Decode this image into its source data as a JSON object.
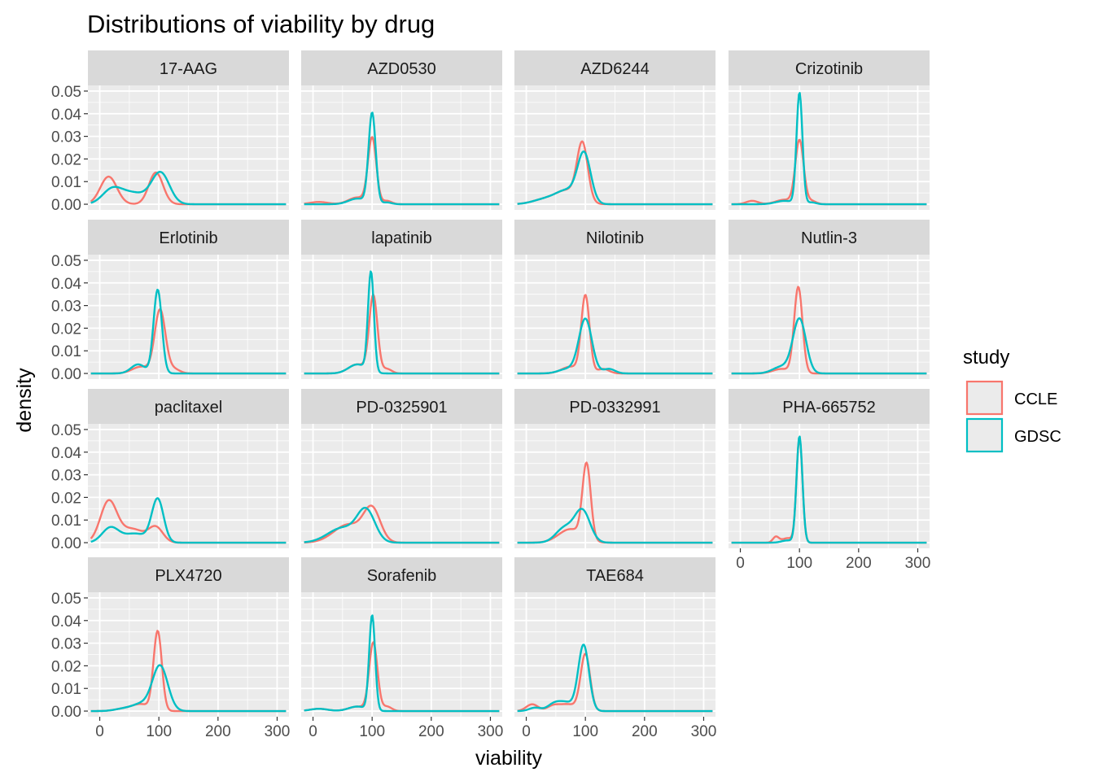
{
  "chart_data": {
    "type": "line",
    "title": "Distributions of viability by drug",
    "xlabel": "viability",
    "ylabel": "density",
    "xlim": [
      -20,
      320
    ],
    "ylim": [
      -0.0025,
      0.0525
    ],
    "x_ticks": [
      0,
      100,
      200,
      300
    ],
    "x_tick_labels": [
      "0",
      "100",
      "200",
      "300"
    ],
    "y_ticks": [
      0,
      0.01,
      0.02,
      0.03,
      0.04,
      0.05
    ],
    "y_tick_labels": [
      "0.00",
      "0.01",
      "0.02",
      "0.03",
      "0.04",
      "0.05"
    ],
    "grid": true,
    "legend": {
      "title": "study",
      "position": "right",
      "entries": [
        {
          "label": "CCLE",
          "color": "#F8766D"
        },
        {
          "label": "GDSC",
          "color": "#00BFC4"
        }
      ]
    },
    "facets": [
      {
        "drug": "17-AAG",
        "series": [
          {
            "name": "CCLE",
            "peaks": [
              [
                15,
                0.0122,
                14
              ],
              [
                95,
                0.014,
                12
              ]
            ]
          },
          {
            "name": "GDSC",
            "peaks": [
              [
                20,
                0.0055,
                16
              ],
              [
                55,
                0.005,
                25
              ],
              [
                103,
                0.0135,
                15
              ]
            ]
          }
        ]
      },
      {
        "drug": "AZD0530",
        "series": [
          {
            "name": "CCLE",
            "peaks": [
              [
                100,
                0.029,
                7
              ],
              [
                75,
                0.003,
                15
              ],
              [
                10,
                0.001,
                15
              ],
              [
                125,
                0.0015,
                8
              ]
            ]
          },
          {
            "name": "GDSC",
            "peaks": [
              [
                100,
                0.04,
                6
              ],
              [
                75,
                0.0025,
                15
              ],
              [
                125,
                0.0008,
                8
              ]
            ]
          }
        ]
      },
      {
        "drug": "AZD6244",
        "series": [
          {
            "name": "CCLE",
            "peaks": [
              [
                95,
                0.025,
                9
              ],
              [
                70,
                0.006,
                20
              ],
              [
                30,
                0.002,
                20
              ]
            ]
          },
          {
            "name": "GDSC",
            "peaks": [
              [
                98,
                0.021,
                11
              ],
              [
                70,
                0.006,
                20
              ],
              [
                30,
                0.002,
                20
              ]
            ]
          }
        ]
      },
      {
        "drug": "Crizotinib",
        "series": [
          {
            "name": "CCLE",
            "peaks": [
              [
                100,
                0.028,
                7
              ],
              [
                75,
                0.002,
                15
              ],
              [
                20,
                0.0015,
                10
              ],
              [
                120,
                0.0015,
                8
              ]
            ]
          },
          {
            "name": "GDSC",
            "peaks": [
              [
                100,
                0.049,
                5
              ],
              [
                75,
                0.0015,
                15
              ],
              [
                120,
                0.0008,
                8
              ]
            ]
          }
        ]
      },
      {
        "drug": "Erlotinib",
        "series": [
          {
            "name": "CCLE",
            "peaks": [
              [
                102,
                0.028,
                9
              ],
              [
                70,
                0.003,
                15
              ],
              [
                125,
                0.002,
                10
              ]
            ]
          },
          {
            "name": "GDSC",
            "peaks": [
              [
                98,
                0.037,
                7
              ],
              [
                65,
                0.004,
                12
              ]
            ]
          }
        ]
      },
      {
        "drug": "lapatinib",
        "series": [
          {
            "name": "CCLE",
            "peaks": [
              [
                102,
                0.034,
                7
              ],
              [
                75,
                0.004,
                15
              ],
              [
                125,
                0.002,
                8
              ]
            ]
          },
          {
            "name": "GDSC",
            "peaks": [
              [
                98,
                0.044,
                5
              ],
              [
                75,
                0.004,
                15
              ]
            ]
          }
        ]
      },
      {
        "drug": "Nilotinib",
        "series": [
          {
            "name": "CCLE",
            "peaks": [
              [
                100,
                0.034,
                7
              ],
              [
                75,
                0.003,
                15
              ],
              [
                130,
                0.002,
                10
              ]
            ]
          },
          {
            "name": "GDSC",
            "peaks": [
              [
                100,
                0.024,
                11
              ],
              [
                70,
                0.002,
                15
              ],
              [
                140,
                0.002,
                10
              ]
            ]
          }
        ]
      },
      {
        "drug": "Nutlin-3",
        "series": [
          {
            "name": "CCLE",
            "peaks": [
              [
                98,
                0.038,
                7
              ],
              [
                70,
                0.002,
                15
              ]
            ]
          },
          {
            "name": "GDSC",
            "peaks": [
              [
                100,
                0.024,
                11
              ],
              [
                70,
                0.003,
                15
              ]
            ]
          }
        ]
      },
      {
        "drug": "paclitaxel",
        "series": [
          {
            "name": "CCLE",
            "peaks": [
              [
                15,
                0.018,
                14
              ],
              [
                55,
                0.006,
                20
              ],
              [
                95,
                0.0065,
                12
              ]
            ]
          },
          {
            "name": "GDSC",
            "peaks": [
              [
                18,
                0.0065,
                14
              ],
              [
                60,
                0.004,
                20
              ],
              [
                98,
                0.019,
                10
              ]
            ]
          }
        ]
      },
      {
        "drug": "PD-0325901",
        "series": [
          {
            "name": "CCLE",
            "peaks": [
              [
                100,
                0.014,
                14
              ],
              [
                60,
                0.008,
                25
              ]
            ]
          },
          {
            "name": "GDSC",
            "peaks": [
              [
                90,
                0.0135,
                15
              ],
              [
                50,
                0.0065,
                25
              ]
            ]
          }
        ]
      },
      {
        "drug": "PD-0332991",
        "series": [
          {
            "name": "CCLE",
            "peaks": [
              [
                102,
                0.033,
                7
              ],
              [
                75,
                0.006,
                20
              ]
            ]
          },
          {
            "name": "GDSC",
            "peaks": [
              [
                95,
                0.014,
                13
              ],
              [
                65,
                0.0065,
                15
              ]
            ]
          }
        ]
      },
      {
        "drug": "PHA-665752",
        "series": [
          {
            "name": "CCLE",
            "peaks": [
              [
                100,
                0.046,
                5
              ],
              [
                60,
                0.0025,
                5
              ],
              [
                80,
                0.002,
                10
              ]
            ]
          },
          {
            "name": "GDSC",
            "peaks": [
              [
                100,
                0.047,
                5
              ],
              [
                80,
                0.001,
                10
              ]
            ]
          }
        ]
      },
      {
        "drug": "PLX4720",
        "series": [
          {
            "name": "CCLE",
            "peaks": [
              [
                98,
                0.035,
                7
              ],
              [
                70,
                0.003,
                15
              ],
              [
                40,
                0.001,
                15
              ]
            ]
          },
          {
            "name": "GDSC",
            "peaks": [
              [
                102,
                0.02,
                13
              ],
              [
                70,
                0.003,
                15
              ],
              [
                40,
                0.001,
                15
              ]
            ]
          }
        ]
      },
      {
        "drug": "Sorafenib",
        "series": [
          {
            "name": "CCLE",
            "peaks": [
              [
                102,
                0.03,
                7
              ],
              [
                75,
                0.002,
                15
              ],
              [
                125,
                0.002,
                8
              ],
              [
                10,
                0.001,
                15
              ]
            ]
          },
          {
            "name": "GDSC",
            "peaks": [
              [
                100,
                0.042,
                5
              ],
              [
                75,
                0.002,
                15
              ],
              [
                10,
                0.001,
                15
              ]
            ]
          }
        ]
      },
      {
        "drug": "TAE684",
        "series": [
          {
            "name": "CCLE",
            "peaks": [
              [
                100,
                0.025,
                8
              ],
              [
                70,
                0.003,
                15
              ],
              [
                10,
                0.003,
                10
              ],
              [
                45,
                0.002,
                10
              ]
            ]
          },
          {
            "name": "GDSC",
            "peaks": [
              [
                97,
                0.029,
                9
              ],
              [
                65,
                0.004,
                15
              ],
              [
                15,
                0.0015,
                10
              ],
              [
                45,
                0.002,
                10
              ]
            ]
          }
        ]
      }
    ]
  }
}
